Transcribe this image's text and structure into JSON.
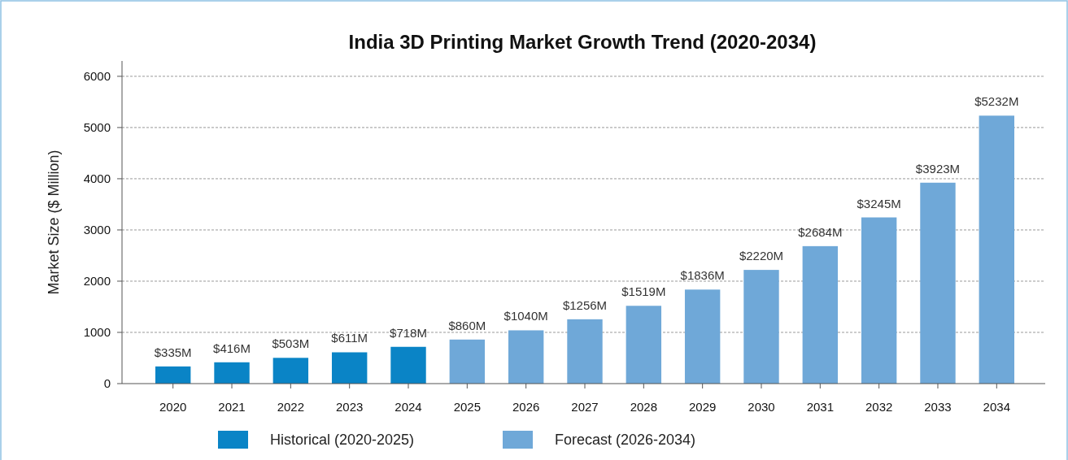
{
  "chart_data": {
    "type": "bar",
    "title": "India 3D Printing Market Growth Trend (2020-2034)",
    "ylabel": "Market Size ($ Million)",
    "categories": [
      "2020",
      "2021",
      "2022",
      "2023",
      "2024",
      "2025",
      "2026",
      "2027",
      "2028",
      "2029",
      "2030",
      "2031",
      "2032",
      "2033",
      "2034"
    ],
    "stacked": true,
    "series": [
      {
        "name": "Historical (2020-2025)",
        "color": "#0a84c6",
        "values": [
          335,
          416,
          503,
          611,
          718,
          null,
          null,
          null,
          null,
          null,
          null,
          null,
          null,
          null,
          null
        ],
        "value_labels": [
          "$335M",
          "$416M",
          "$503M",
          "$611M",
          "$718M",
          null,
          null,
          null,
          null,
          null,
          null,
          null,
          null,
          null,
          null
        ]
      },
      {
        "name": "Forecast (2026-2034)",
        "color": "#6fa8d8",
        "values": [
          null,
          null,
          null,
          null,
          null,
          860,
          1040,
          1256,
          1519,
          1836,
          2220,
          2684,
          3245,
          3923,
          5232
        ],
        "value_labels": [
          null,
          null,
          null,
          null,
          null,
          "$860M",
          "$1040M",
          "$1256M",
          "$1519M",
          "$1836M",
          "$2220M",
          "$2684M",
          "$3245M",
          "$3923M",
          "$5232M"
        ]
      }
    ],
    "ylim": [
      0,
      6300
    ],
    "yticks": [
      0,
      1000,
      2000,
      3000,
      4000,
      5000,
      6000
    ],
    "grid": "y",
    "legend": "bottom"
  }
}
